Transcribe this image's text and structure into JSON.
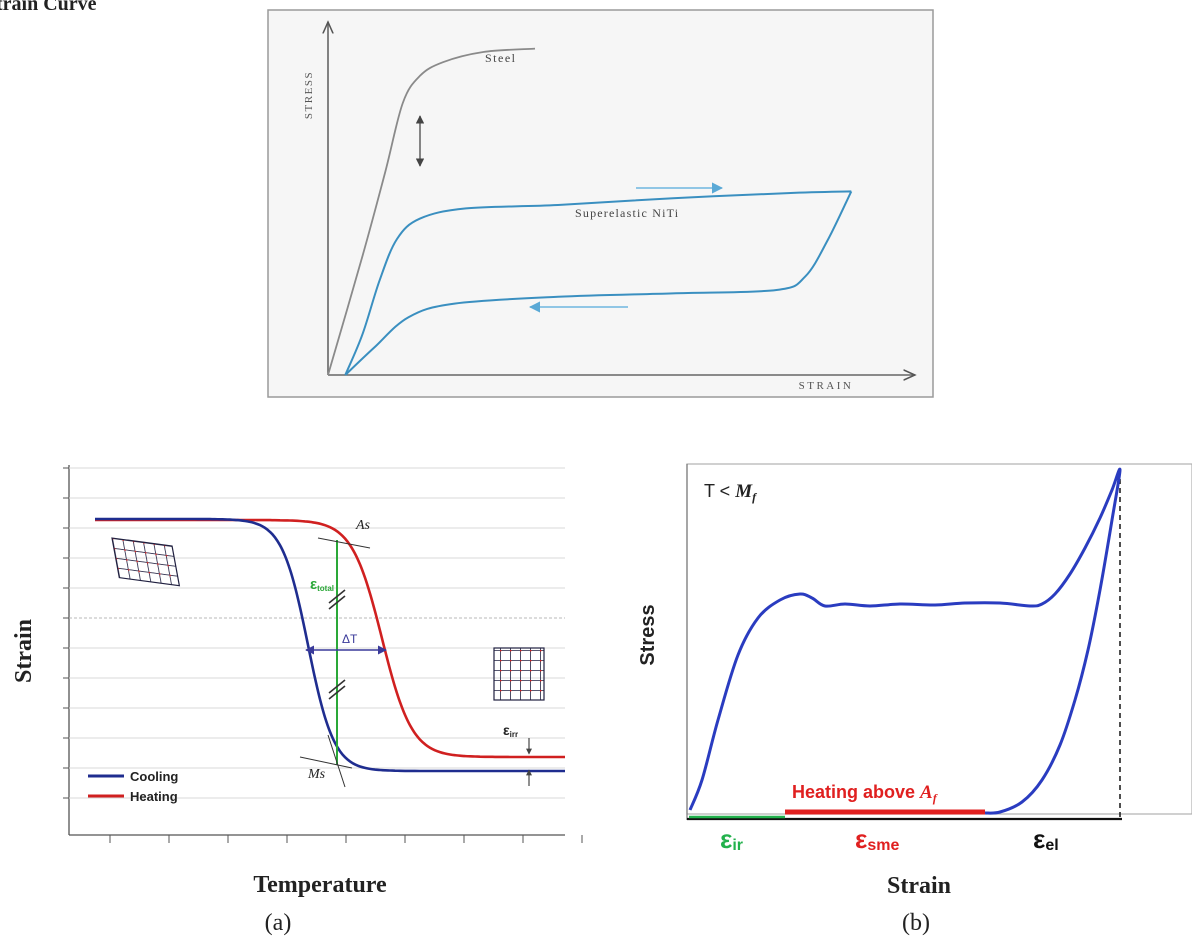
{
  "page_heading": "train Curve",
  "chart_data": [
    {
      "type": "line",
      "xlabel": "STRAIN",
      "ylabel": "STRESS",
      "series": [
        {
          "name": "Steel",
          "color": "#808080",
          "points": [
            [
              0.0,
              0.0
            ],
            [
              0.06,
              0.35
            ],
            [
              0.1,
              0.6
            ],
            [
              0.13,
              0.8
            ],
            [
              0.16,
              0.88
            ],
            [
              0.2,
              0.92
            ],
            [
              0.27,
              0.95
            ],
            [
              0.36,
              0.96
            ]
          ]
        },
        {
          "name": "Superelastic NiTi",
          "color": "#3a8fc0",
          "loading_points": [
            [
              0.03,
              0.0
            ],
            [
              0.06,
              0.12
            ],
            [
              0.09,
              0.28
            ],
            [
              0.12,
              0.4
            ],
            [
              0.16,
              0.46
            ],
            [
              0.24,
              0.49
            ],
            [
              0.4,
              0.5
            ],
            [
              0.6,
              0.52
            ],
            [
              0.8,
              0.535
            ],
            [
              0.91,
              0.54
            ]
          ],
          "unloading_points": [
            [
              0.91,
              0.54
            ],
            [
              0.87,
              0.4
            ],
            [
              0.83,
              0.29
            ],
            [
              0.78,
              0.25
            ],
            [
              0.6,
              0.24
            ],
            [
              0.4,
              0.23
            ],
            [
              0.22,
              0.21
            ],
            [
              0.14,
              0.17
            ],
            [
              0.08,
              0.08
            ],
            [
              0.03,
              0.0
            ]
          ]
        }
      ],
      "annotations": {
        "loading_arrow": "→",
        "unloading_arrow": "←",
        "gap_arrow": "↕"
      }
    },
    {
      "type": "line",
      "panel_label": "(a)",
      "xlabel": "Temperature",
      "ylabel": "Strain",
      "series": [
        {
          "name": "Cooling",
          "color": "#1f2d8f"
        },
        {
          "name": "Heating",
          "color": "#d02020"
        }
      ],
      "annotations": {
        "As": "As",
        "Ms": "Ms",
        "delta_T": "ΔT",
        "eps_total": "ε",
        "eps_total_sub": "total",
        "eps_irr": "ε",
        "eps_irr_sub": "irr"
      }
    },
    {
      "type": "line",
      "panel_label": "(b)",
      "xlabel": "Strain",
      "ylabel": "Stress",
      "condition": "T < ",
      "condition_sym": "M",
      "condition_sub": "f",
      "series": [
        {
          "name": "",
          "color": "#2a3cc0"
        }
      ],
      "segments": {
        "heating_label": "Heating above ",
        "heating_sym": "A",
        "heating_sub": "f",
        "eps_ir": "ε",
        "eps_ir_sub": "ir",
        "eps_sme": "ε",
        "eps_sme_sub": "sme",
        "eps_el": "ε",
        "eps_el_sub": "el"
      }
    }
  ]
}
